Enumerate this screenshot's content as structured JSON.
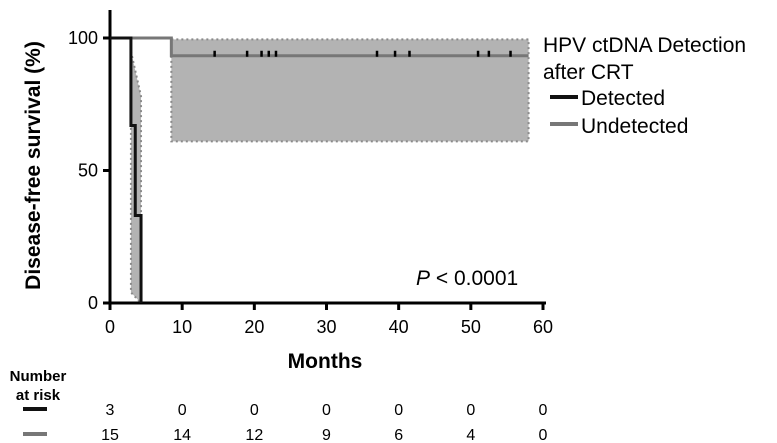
{
  "chart_data": {
    "type": "line",
    "subtype": "kaplan-meier",
    "xlabel": "Months",
    "ylabel": "Disease-free survival (%)",
    "xlim": [
      0,
      60
    ],
    "ylim": [
      0,
      100
    ],
    "x_ticks": [
      "0",
      "10",
      "20",
      "30",
      "40",
      "50",
      "60"
    ],
    "y_ticks": [
      "0",
      "50",
      "100"
    ],
    "grid": false,
    "legend": {
      "title": "HPV ctDNA Detection after CRT",
      "title_line1": "HPV ctDNA Detection",
      "title_line2": "after CRT",
      "placement": "top-right",
      "entries": [
        "Detected",
        "Undetected"
      ]
    },
    "annotation": {
      "p_label": "P",
      "p_text": " < 0.0001"
    },
    "series": [
      {
        "name": "Detected",
        "color": "#111111",
        "steps": [
          [
            0,
            100
          ],
          [
            2.9,
            100
          ],
          [
            2.9,
            67
          ],
          [
            3.5,
            67
          ],
          [
            3.5,
            33
          ],
          [
            4.3,
            33
          ],
          [
            4.3,
            0
          ]
        ],
        "ci_band": {
          "x": [
            2.9,
            4.3
          ],
          "lower": [
            4,
            0
          ],
          "upper": [
            95,
            78
          ]
        },
        "censor_x": []
      },
      {
        "name": "Undetected",
        "color": "#777777",
        "steps": [
          [
            0,
            100
          ],
          [
            8.5,
            100
          ],
          [
            8.5,
            93.3
          ],
          [
            58,
            93.3
          ]
        ],
        "ci_band": {
          "x": [
            8.5,
            58
          ],
          "lower": [
            61,
            61
          ],
          "upper": [
            99.5,
            99.5
          ]
        },
        "censor_x": [
          14.5,
          19,
          21,
          22,
          23,
          37,
          39.5,
          41.5,
          51,
          52.5,
          55.5
        ]
      }
    ],
    "risk_table": {
      "header_line1": "Number",
      "header_line2": "at risk",
      "times": [
        0,
        10,
        20,
        30,
        40,
        50,
        60
      ],
      "rows": [
        {
          "series": "Detected",
          "values": [
            "3",
            "0",
            "0",
            "0",
            "0",
            "0",
            "0"
          ]
        },
        {
          "series": "Undetected",
          "values": [
            "15",
            "14",
            "12",
            "9",
            "6",
            "4",
            "0"
          ]
        }
      ]
    }
  }
}
